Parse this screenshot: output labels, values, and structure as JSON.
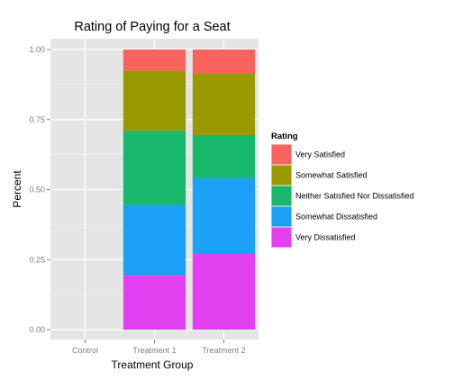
{
  "chart_data": {
    "type": "bar",
    "stacked": true,
    "title": "Rating of Paying for a Seat",
    "xlabel": "Treatment Group",
    "ylabel": "Percent",
    "categories": [
      "Control",
      "Treatment 1",
      "Treatment 2"
    ],
    "yticks": [
      "0.00",
      "0.25",
      "0.50",
      "0.75",
      "1.00"
    ],
    "ylim": [
      0,
      1.04
    ],
    "grid": true,
    "legend": {
      "title": "Rating",
      "placement": "right"
    },
    "series": [
      {
        "name": "Very Dissatisfied",
        "color": "#E040F0",
        "values": [
          0,
          0.195,
          0.27
        ]
      },
      {
        "name": "Somewhat Dissatisfied",
        "color": "#1AA0F5",
        "values": [
          0,
          0.25,
          0.27
        ]
      },
      {
        "name": "Neither Satisfied Nor Dissatisfied",
        "color": "#17B86B",
        "values": [
          0,
          0.265,
          0.155
        ]
      },
      {
        "name": "Somewhat Satisfied",
        "color": "#999A00",
        "values": [
          0,
          0.215,
          0.22
        ]
      },
      {
        "name": "Very Satisfied",
        "color": "#F8645D",
        "values": [
          0,
          0.075,
          0.085
        ]
      }
    ]
  }
}
